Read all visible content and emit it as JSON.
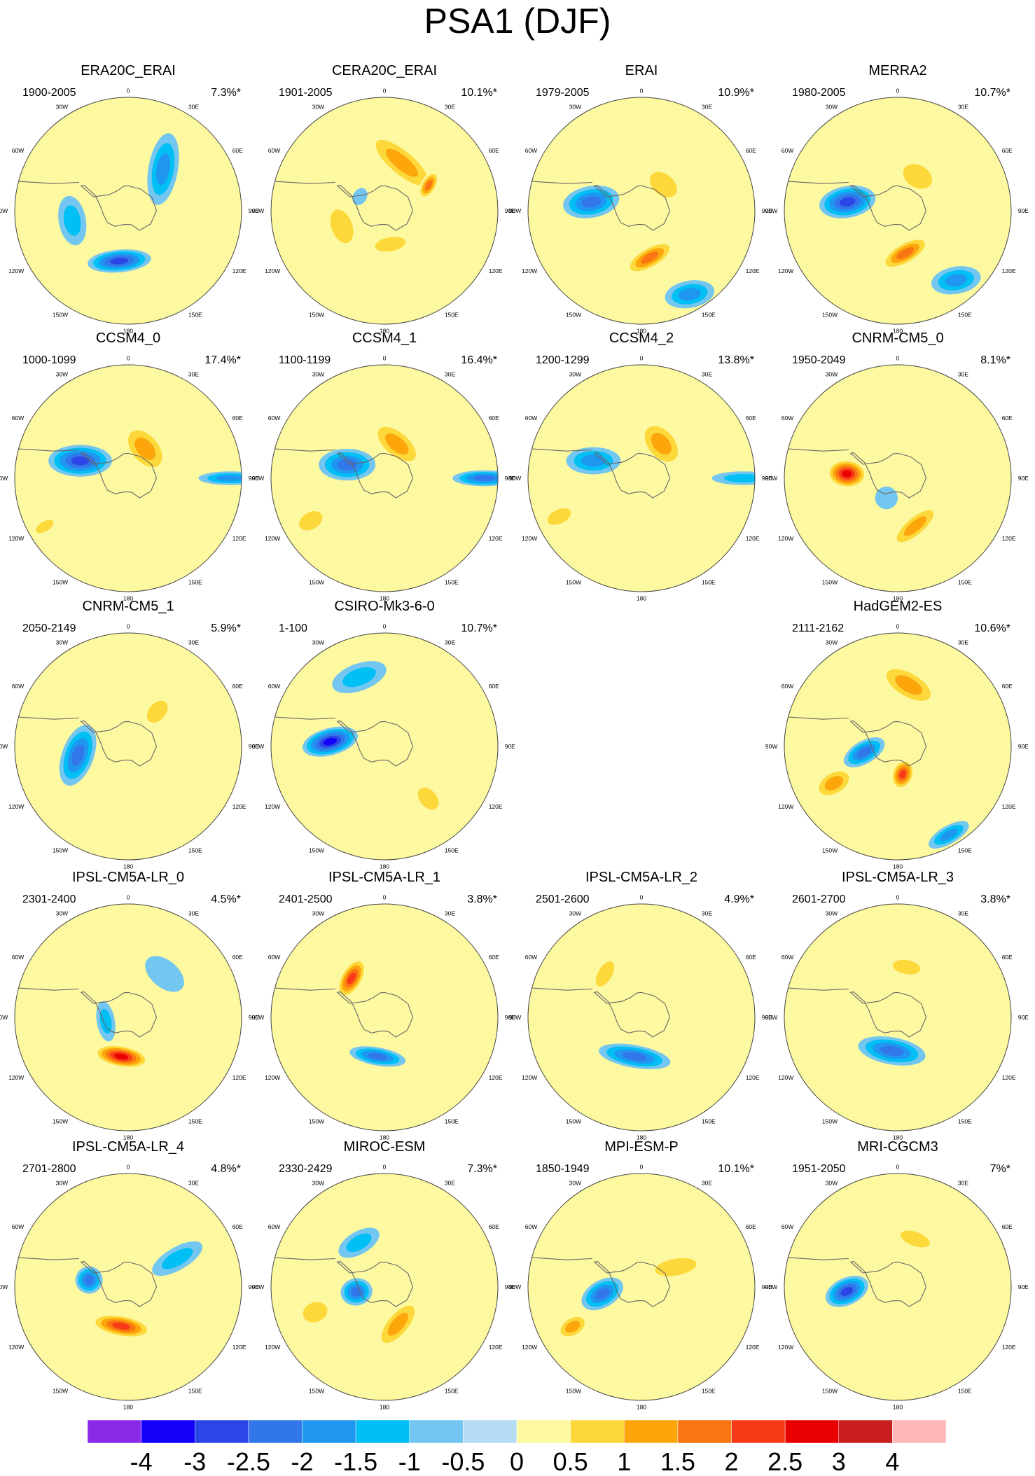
{
  "title": "PSA1 (DJF)",
  "chart_data": {
    "type": "polar-contour-map-grid",
    "season": "DJF",
    "mode": "PSA1",
    "projection": "South polar stereographic",
    "longitude_labels": [
      "0",
      "30E",
      "60E",
      "90E",
      "120E",
      "150E",
      "180",
      "150W",
      "120W",
      "90W",
      "60W",
      "30W"
    ],
    "panels": [
      {
        "name": "ERA20C_ERAI",
        "period": "1900-2005",
        "variance": "7.3%*",
        "anomalies": [
          {
            "lon": -170,
            "dist": 0.45,
            "value": -2.5,
            "rx": 0.28,
            "ry": 0.1,
            "rot": -15
          },
          {
            "lon": 40,
            "dist": 0.48,
            "value": -1.5,
            "rx": 0.32,
            "ry": 0.13,
            "rot": 60
          },
          {
            "lon": -100,
            "dist": 0.5,
            "value": -1,
            "rx": 0.22,
            "ry": 0.12,
            "rot": 0
          },
          {
            "lon": -60,
            "dist": 0.2,
            "value": 0.5,
            "rx": 0.12,
            "ry": 0.08,
            "rot": 0
          }
        ]
      },
      {
        "name": "CERA20C_ERAI",
        "period": "1901-2005",
        "variance": "10.1%*",
        "anomalies": [
          {
            "lon": 20,
            "dist": 0.45,
            "value": 1.5,
            "rx": 0.4,
            "ry": 0.14,
            "rot": 20
          },
          {
            "lon": 60,
            "dist": 0.45,
            "value": 2,
            "rx": 0.14,
            "ry": 0.07,
            "rot": 60
          },
          {
            "lon": -110,
            "dist": 0.4,
            "value": 1,
            "rx": 0.25,
            "ry": 0.15,
            "rot": 0
          },
          {
            "lon": 170,
            "dist": 0.3,
            "value": 1,
            "rx": 0.22,
            "ry": 0.1,
            "rot": 0
          },
          {
            "lon": -60,
            "dist": 0.25,
            "value": -0.5,
            "rx": 0.08,
            "ry": 0.06,
            "rot": 0
          }
        ]
      },
      {
        "name": "ERAI",
        "period": "1979-2005",
        "variance": "10.9%*",
        "anomalies": [
          {
            "lon": -80,
            "dist": 0.45,
            "value": -2,
            "rx": 0.14,
            "ry": 0.25,
            "rot": -20
          },
          {
            "lon": 170,
            "dist": 0.42,
            "value": 2,
            "rx": 0.25,
            "ry": 0.1,
            "rot": -20
          },
          {
            "lon": 40,
            "dist": 0.3,
            "value": 1,
            "rx": 0.22,
            "ry": 0.15,
            "rot": 0
          },
          {
            "lon": 150,
            "dist": 0.85,
            "value": -1.5,
            "rx": 0.22,
            "ry": 0.12,
            "rot": 20
          }
        ]
      },
      {
        "name": "MERRA2",
        "period": "1980-2005",
        "variance": "10.7%*",
        "anomalies": [
          {
            "lon": -80,
            "dist": 0.45,
            "value": -2.5,
            "rx": 0.14,
            "ry": 0.25,
            "rot": -20
          },
          {
            "lon": 170,
            "dist": 0.38,
            "value": 2,
            "rx": 0.25,
            "ry": 0.1,
            "rot": -20
          },
          {
            "lon": 30,
            "dist": 0.35,
            "value": 1,
            "rx": 0.22,
            "ry": 0.16,
            "rot": 0
          },
          {
            "lon": 140,
            "dist": 0.8,
            "value": -1.5,
            "rx": 0.22,
            "ry": 0.12,
            "rot": 30
          }
        ]
      },
      {
        "name": "CCSM4_0",
        "period": "1000-1099",
        "variance": "17.4%*",
        "anomalies": [
          {
            "lon": -70,
            "dist": 0.45,
            "value": -2.5,
            "rx": 0.14,
            "ry": 0.28,
            "rot": -20
          },
          {
            "lon": 30,
            "dist": 0.3,
            "value": 1.5,
            "rx": 0.26,
            "ry": 0.16,
            "rot": 20
          },
          {
            "lon": 90,
            "dist": 0.9,
            "value": -1.5,
            "rx": 0.06,
            "ry": 0.28,
            "rot": 0
          },
          {
            "lon": -120,
            "dist": 0.85,
            "value": 1,
            "rx": 0.07,
            "ry": 0.14,
            "rot": 0
          }
        ]
      },
      {
        "name": "CCSM4_1",
        "period": "1100-1199",
        "variance": "16.4%*",
        "anomalies": [
          {
            "lon": -70,
            "dist": 0.35,
            "value": -2,
            "rx": 0.14,
            "ry": 0.25,
            "rot": -20
          },
          {
            "lon": 20,
            "dist": 0.32,
            "value": 1.5,
            "rx": 0.28,
            "ry": 0.14,
            "rot": 20
          },
          {
            "lon": 90,
            "dist": 0.88,
            "value": -2,
            "rx": 0.07,
            "ry": 0.28,
            "rot": 0
          },
          {
            "lon": -120,
            "dist": 0.75,
            "value": 1,
            "rx": 0.12,
            "ry": 0.18,
            "rot": 0
          }
        ]
      },
      {
        "name": "CCSM4_2",
        "period": "1200-1299",
        "variance": "13.8%*",
        "anomalies": [
          {
            "lon": -70,
            "dist": 0.45,
            "value": -1.5,
            "rx": 0.12,
            "ry": 0.24,
            "rot": -20
          },
          {
            "lon": 30,
            "dist": 0.35,
            "value": 1.5,
            "rx": 0.25,
            "ry": 0.16,
            "rot": 20
          },
          {
            "lon": 90,
            "dist": 0.9,
            "value": -1,
            "rx": 0.06,
            "ry": 0.28,
            "rot": 0
          },
          {
            "lon": -115,
            "dist": 0.8,
            "value": 1,
            "rx": 0.1,
            "ry": 0.18,
            "rot": 0
          }
        ]
      },
      {
        "name": "CNRM-CM5_0",
        "period": "1950-2049",
        "variance": "8.1%*",
        "anomalies": [
          {
            "lon": -85,
            "dist": 0.45,
            "value": 3,
            "rx": 0.13,
            "ry": 0.18,
            "rot": 0
          },
          {
            "lon": 160,
            "dist": 0.45,
            "value": 1.5,
            "rx": 0.28,
            "ry": 0.1,
            "rot": -20
          },
          {
            "lon": -150,
            "dist": 0.2,
            "value": -0.5,
            "rx": 0.1,
            "ry": 0.1,
            "rot": 0
          },
          {
            "lon": 30,
            "dist": 0.25,
            "value": 0.5,
            "rx": 0.15,
            "ry": 0.1,
            "rot": 0
          }
        ]
      },
      {
        "name": "CNRM-CM5_1",
        "period": "2050-2149",
        "variance": "5.9%*",
        "anomalies": [
          {
            "lon": -100,
            "dist": 0.45,
            "value": -2,
            "rx": 0.28,
            "ry": 0.14,
            "rot": 30
          },
          {
            "lon": 40,
            "dist": 0.4,
            "value": 1,
            "rx": 0.12,
            "ry": 0.18,
            "rot": 0
          },
          {
            "lon": -20,
            "dist": 0.4,
            "value": 0.5,
            "rx": 0.1,
            "ry": 0.1,
            "rot": 0
          }
        ]
      },
      {
        "name": "CSIRO-Mk3-6-0",
        "period": "1-100",
        "variance": "10.7%*",
        "anomalies": [
          {
            "lon": -85,
            "dist": 0.48,
            "value": -3,
            "rx": 0.12,
            "ry": 0.25,
            "rot": -20
          },
          {
            "lon": 20,
            "dist": 0.3,
            "value": 0.5,
            "rx": 0.22,
            "ry": 0.16,
            "rot": 0
          },
          {
            "lon": -20,
            "dist": 0.65,
            "value": -1,
            "rx": 0.25,
            "ry": 0.12,
            "rot": 0
          },
          {
            "lon": 140,
            "dist": 0.6,
            "value": 1,
            "rx": 0.12,
            "ry": 0.18,
            "rot": 0
          }
        ]
      },
      {
        "name": "HadGEM2-ES",
        "period": "2111-2162",
        "variance": "10.6%*",
        "anomalies": [
          {
            "lon": -100,
            "dist": 0.3,
            "value": -2,
            "rx": 0.1,
            "ry": 0.2,
            "rot": -20
          },
          {
            "lon": 170,
            "dist": 0.25,
            "value": 2.5,
            "rx": 0.1,
            "ry": 0.14,
            "rot": 30
          },
          {
            "lon": 10,
            "dist": 0.55,
            "value": 1.5,
            "rx": 0.3,
            "ry": 0.14,
            "rot": 20
          },
          {
            "lon": -120,
            "dist": 0.65,
            "value": 1.5,
            "rx": 0.12,
            "ry": 0.2,
            "rot": 0
          },
          {
            "lon": 150,
            "dist": 0.9,
            "value": -1.5,
            "rx": 0.2,
            "ry": 0.08,
            "rot": 0
          }
        ]
      },
      {
        "name": "IPSL-CM5A-LR_0",
        "period": "2301-2400",
        "variance": "4.5%*",
        "anomalies": [
          {
            "lon": -170,
            "dist": 0.35,
            "value": 3,
            "rx": 0.25,
            "ry": 0.1,
            "rot": 0
          },
          {
            "lon": -100,
            "dist": 0.2,
            "value": -1,
            "rx": 0.18,
            "ry": 0.08,
            "rot": 0
          },
          {
            "lon": 40,
            "dist": 0.5,
            "value": -0.5,
            "rx": 0.2,
            "ry": 0.12,
            "rot": 0
          }
        ]
      },
      {
        "name": "IPSL-CM5A-LR_1",
        "period": "2401-2500",
        "variance": "3.8%*",
        "anomalies": [
          {
            "lon": -40,
            "dist": 0.45,
            "value": 2.5,
            "rx": 0.2,
            "ry": 0.1,
            "rot": -20
          },
          {
            "lon": -170,
            "dist": 0.35,
            "value": -2,
            "rx": 0.25,
            "ry": 0.08,
            "rot": 0
          }
        ]
      },
      {
        "name": "IPSL-CM5A-LR_2",
        "period": "2501-2600",
        "variance": "4.9%*",
        "anomalies": [
          {
            "lon": -170,
            "dist": 0.35,
            "value": -2,
            "rx": 0.32,
            "ry": 0.1,
            "rot": 0
          },
          {
            "lon": -40,
            "dist": 0.5,
            "value": 1,
            "rx": 0.2,
            "ry": 0.1,
            "rot": -20
          }
        ]
      },
      {
        "name": "IPSL-CM5A-LR_3",
        "period": "2601-2700",
        "variance": "3.8%*",
        "anomalies": [
          {
            "lon": -170,
            "dist": 0.3,
            "value": -2,
            "rx": 0.3,
            "ry": 0.12,
            "rot": 0
          },
          {
            "lon": 10,
            "dist": 0.45,
            "value": 1,
            "rx": 0.2,
            "ry": 0.1,
            "rot": 0
          },
          {
            "lon": -20,
            "dist": 0.2,
            "value": 0.5,
            "rx": 0.12,
            "ry": 0.08,
            "rot": 0
          }
        ]
      },
      {
        "name": "IPSL-CM5A-LR_4",
        "period": "2701-2800",
        "variance": "4.8%*",
        "anomalies": [
          {
            "lon": -170,
            "dist": 0.35,
            "value": 2.5,
            "rx": 0.28,
            "ry": 0.1,
            "rot": 0
          },
          {
            "lon": -80,
            "dist": 0.35,
            "value": -2,
            "rx": 0.12,
            "ry": 0.12,
            "rot": 0
          },
          {
            "lon": 60,
            "dist": 0.5,
            "value": -1,
            "rx": 0.1,
            "ry": 0.25,
            "rot": 0
          }
        ]
      },
      {
        "name": "MIROC-ESM",
        "period": "2330-2429",
        "variance": "7.3%*",
        "anomalies": [
          {
            "lon": -100,
            "dist": 0.25,
            "value": -2,
            "rx": 0.12,
            "ry": 0.14,
            "rot": 0
          },
          {
            "lon": 160,
            "dist": 0.35,
            "value": 1.5,
            "rx": 0.28,
            "ry": 0.12,
            "rot": -30
          },
          {
            "lon": -30,
            "dist": 0.45,
            "value": -1,
            "rx": 0.2,
            "ry": 0.1,
            "rot": 0
          },
          {
            "lon": -110,
            "dist": 0.65,
            "value": 1,
            "rx": 0.14,
            "ry": 0.18,
            "rot": 0
          }
        ]
      },
      {
        "name": "MPI-ESM-P",
        "period": "1850-1949",
        "variance": "10.1%*",
        "anomalies": [
          {
            "lon": -100,
            "dist": 0.35,
            "value": -2,
            "rx": 0.12,
            "ry": 0.2,
            "rot": -20
          },
          {
            "lon": 60,
            "dist": 0.35,
            "value": 1,
            "rx": 0.12,
            "ry": 0.3,
            "rot": 20
          },
          {
            "lon": -120,
            "dist": 0.7,
            "value": 1.5,
            "rx": 0.1,
            "ry": 0.16,
            "rot": 0
          },
          {
            "lon": 10,
            "dist": 0.5,
            "value": 0.5,
            "rx": 0.25,
            "ry": 0.12,
            "rot": 0
          }
        ]
      },
      {
        "name": "MRI-CGCM3",
        "period": "1951-2050",
        "variance": "7%*",
        "anomalies": [
          {
            "lon": -95,
            "dist": 0.45,
            "value": -2.5,
            "rx": 0.12,
            "ry": 0.2,
            "rot": -20
          },
          {
            "lon": 20,
            "dist": 0.45,
            "value": 1,
            "rx": 0.22,
            "ry": 0.1,
            "rot": 0
          },
          {
            "lon": -160,
            "dist": 0.25,
            "value": 0.5,
            "rx": 0.2,
            "ry": 0.1,
            "rot": 0
          }
        ]
      }
    ],
    "colorbar": {
      "levels": [
        "-4",
        "-3",
        "-2.5",
        "-2",
        "-1.5",
        "-1",
        "-0.5",
        "0",
        "0.5",
        "1",
        "1.5",
        "2",
        "2.5",
        "3",
        "4"
      ],
      "colors": [
        "#8a2ae8",
        "#1400fa",
        "#2a46e6",
        "#3277e9",
        "#1f96f0",
        "#00bff5",
        "#73c6ef",
        "#b4dcf2",
        "#fdf9a0",
        "#fdd83a",
        "#fca60c",
        "#f97612",
        "#f93a18",
        "#e80000",
        "#c81e1e",
        "#ffb7b7"
      ]
    }
  }
}
